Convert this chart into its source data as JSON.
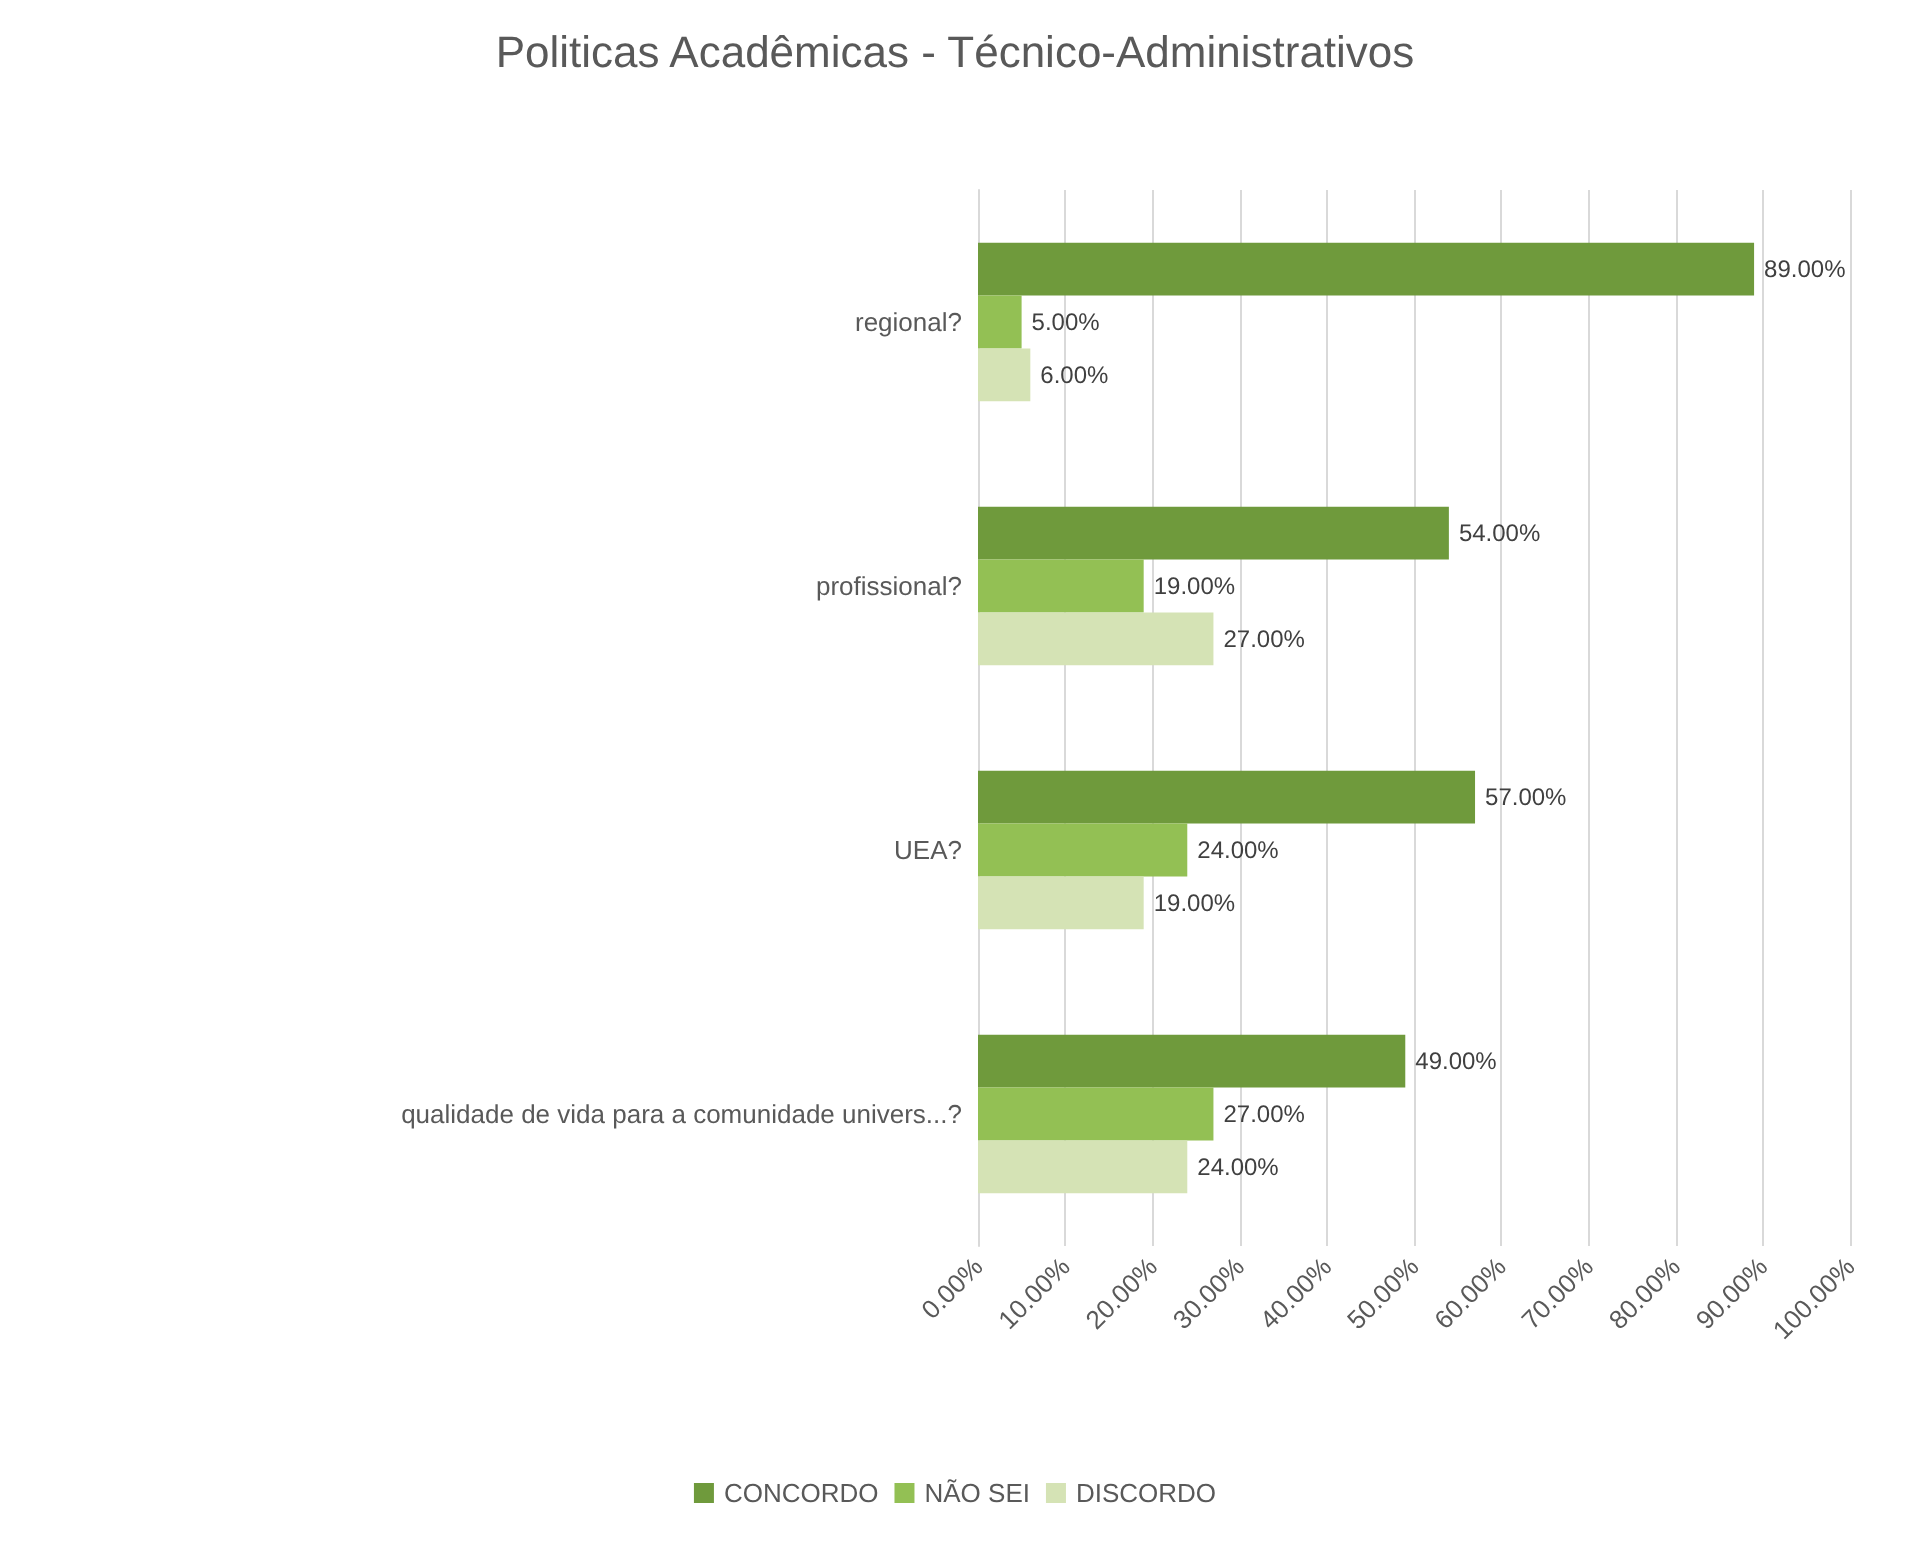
{
  "chart_data": {
    "type": "bar",
    "orientation": "horizontal",
    "title": "Politicas Acadêmicas - Técnico-Administrativos",
    "categories": [
      "regional?",
      "profissional?",
      "UEA?",
      "qualidade de vida para a comunidade univers...?"
    ],
    "series": [
      {
        "name": "CONCORDO",
        "color": "#6f9a3c",
        "values": [
          89,
          54,
          57,
          49
        ],
        "value_labels": [
          "89.00%",
          "54.00%",
          "57.00%",
          "49.00%"
        ]
      },
      {
        "name": "NÃO SEI",
        "color": "#93c054",
        "values": [
          5,
          19,
          24,
          27
        ],
        "value_labels": [
          "5.00%",
          "19.00%",
          "24.00%",
          "27.00%"
        ]
      },
      {
        "name": "DISCORDO",
        "color": "#d5e3b5",
        "values": [
          6,
          27,
          19,
          24
        ],
        "value_labels": [
          "6.00%",
          "27.00%",
          "19.00%",
          "24.00%"
        ]
      }
    ],
    "xlim": [
      0,
      100
    ],
    "xticks": [
      {
        "value": 0,
        "label": "0.00%"
      },
      {
        "value": 10,
        "label": "10.00%"
      },
      {
        "value": 20,
        "label": "20.00%"
      },
      {
        "value": 30,
        "label": "30.00%"
      },
      {
        "value": 40,
        "label": "40.00%"
      },
      {
        "value": 50,
        "label": "50.00%"
      },
      {
        "value": 60,
        "label": "60.00%"
      },
      {
        "value": 70,
        "label": "70.00%"
      },
      {
        "value": 80,
        "label": "80.00%"
      },
      {
        "value": 90,
        "label": "90.00%"
      },
      {
        "value": 100,
        "label": "100.00%"
      }
    ],
    "grid": "x",
    "legend": "bottom"
  }
}
